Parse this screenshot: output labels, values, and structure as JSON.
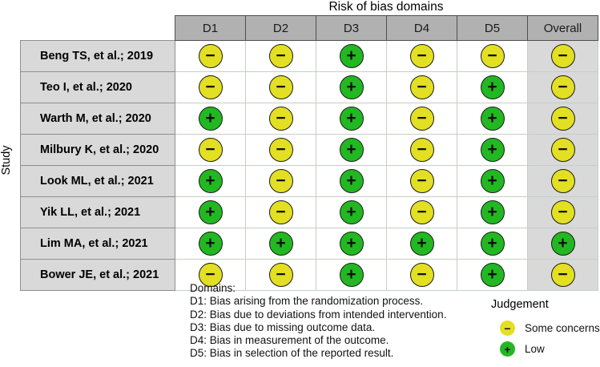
{
  "title": "Risk of bias domains",
  "y_axis_label": "Study",
  "colors": {
    "low": "#22b822",
    "some_concerns": "#e3df23",
    "header_bg": "#b1b1b1",
    "label_bg": "#d9d9d9"
  },
  "symbols": {
    "low": "+",
    "some_concerns": "−"
  },
  "chart_data": {
    "type": "table",
    "title": "Risk of bias domains",
    "row_header": "Study",
    "columns": [
      "D1",
      "D2",
      "D3",
      "D4",
      "D5",
      "Overall"
    ],
    "judgement_scale": [
      "low",
      "some_concerns"
    ],
    "rows": [
      {
        "study": "Beng TS, et al.; 2019",
        "judgements": [
          "some_concerns",
          "some_concerns",
          "low",
          "some_concerns",
          "some_concerns",
          "some_concerns"
        ]
      },
      {
        "study": "Teo I, et al.; 2020",
        "judgements": [
          "some_concerns",
          "some_concerns",
          "low",
          "some_concerns",
          "low",
          "some_concerns"
        ]
      },
      {
        "study": "Warth M, et al.; 2020",
        "judgements": [
          "low",
          "some_concerns",
          "low",
          "some_concerns",
          "low",
          "some_concerns"
        ]
      },
      {
        "study": "Milbury K, et al.; 2020",
        "judgements": [
          "some_concerns",
          "some_concerns",
          "low",
          "some_concerns",
          "low",
          "some_concerns"
        ]
      },
      {
        "study": "Look ML, et al.; 2021",
        "judgements": [
          "low",
          "some_concerns",
          "low",
          "some_concerns",
          "low",
          "some_concerns"
        ]
      },
      {
        "study": "Yik LL, et al.; 2021",
        "judgements": [
          "low",
          "some_concerns",
          "low",
          "some_concerns",
          "low",
          "some_concerns"
        ]
      },
      {
        "study": "Lim MA, et al.; 2021",
        "judgements": [
          "low",
          "low",
          "low",
          "low",
          "low",
          "low"
        ]
      },
      {
        "study": "Bower JE, et al.; 2021",
        "judgements": [
          "some_concerns",
          "some_concerns",
          "low",
          "some_concerns",
          "low",
          "some_concerns"
        ]
      }
    ]
  },
  "domains_note": {
    "heading": "Domains:",
    "lines": [
      "D1: Bias arising from the randomization process.",
      "D2: Bias due to deviations from intended intervention.",
      "D3: Bias due to missing outcome data.",
      "D4: Bias in measurement of the outcome.",
      "D5: Bias in selection of the reported result."
    ]
  },
  "legend": {
    "title": "Judgement",
    "items": [
      {
        "key": "some_concerns",
        "label": "Some concerns"
      },
      {
        "key": "low",
        "label": "Low"
      }
    ]
  }
}
